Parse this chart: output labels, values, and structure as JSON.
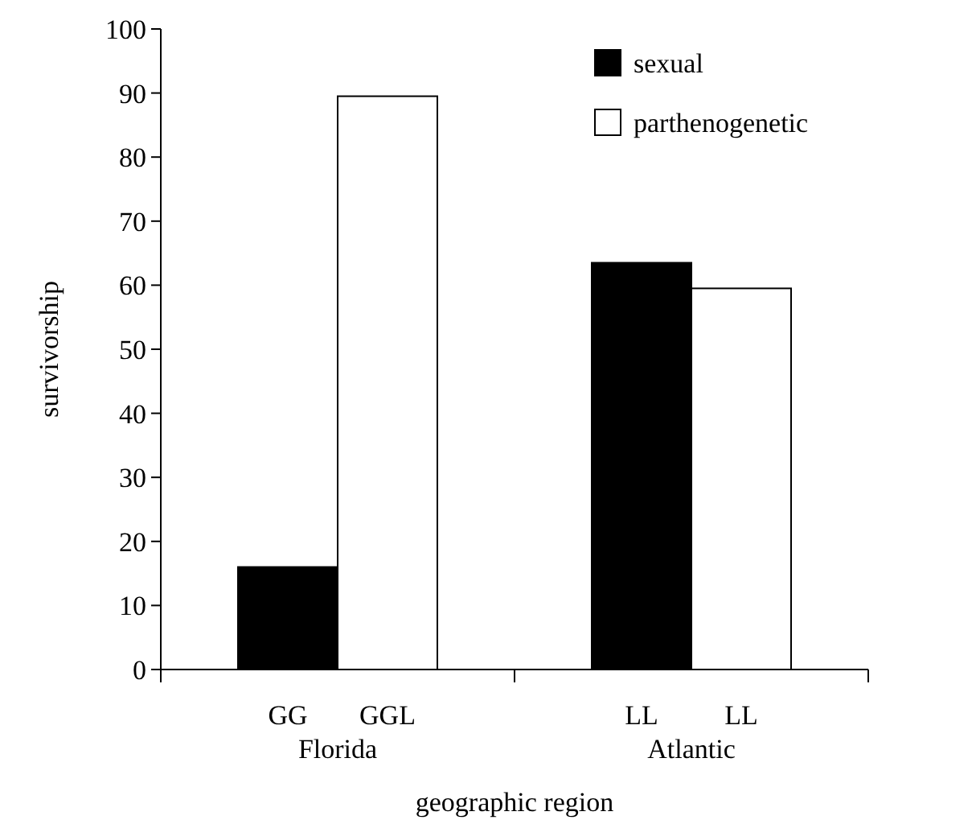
{
  "chart_data": {
    "type": "bar",
    "xlabel": "geographic region",
    "ylabel": "survivorship",
    "categories": [
      "Florida",
      "Atlantic"
    ],
    "series": [
      {
        "name": "sexual",
        "color": "#000000",
        "values": [
          16,
          63.5
        ]
      },
      {
        "name": "parthenogenetic",
        "color": "#ffffff",
        "values": [
          89.5,
          59.5
        ]
      }
    ],
    "annotations": [
      "GG",
      "GGL",
      "LL",
      "LL"
    ],
    "ylim": [
      0,
      100
    ],
    "yticks": [
      0,
      10,
      20,
      30,
      40,
      50,
      60,
      70,
      80,
      90,
      100
    ],
    "grid": false,
    "legend": "top right"
  }
}
